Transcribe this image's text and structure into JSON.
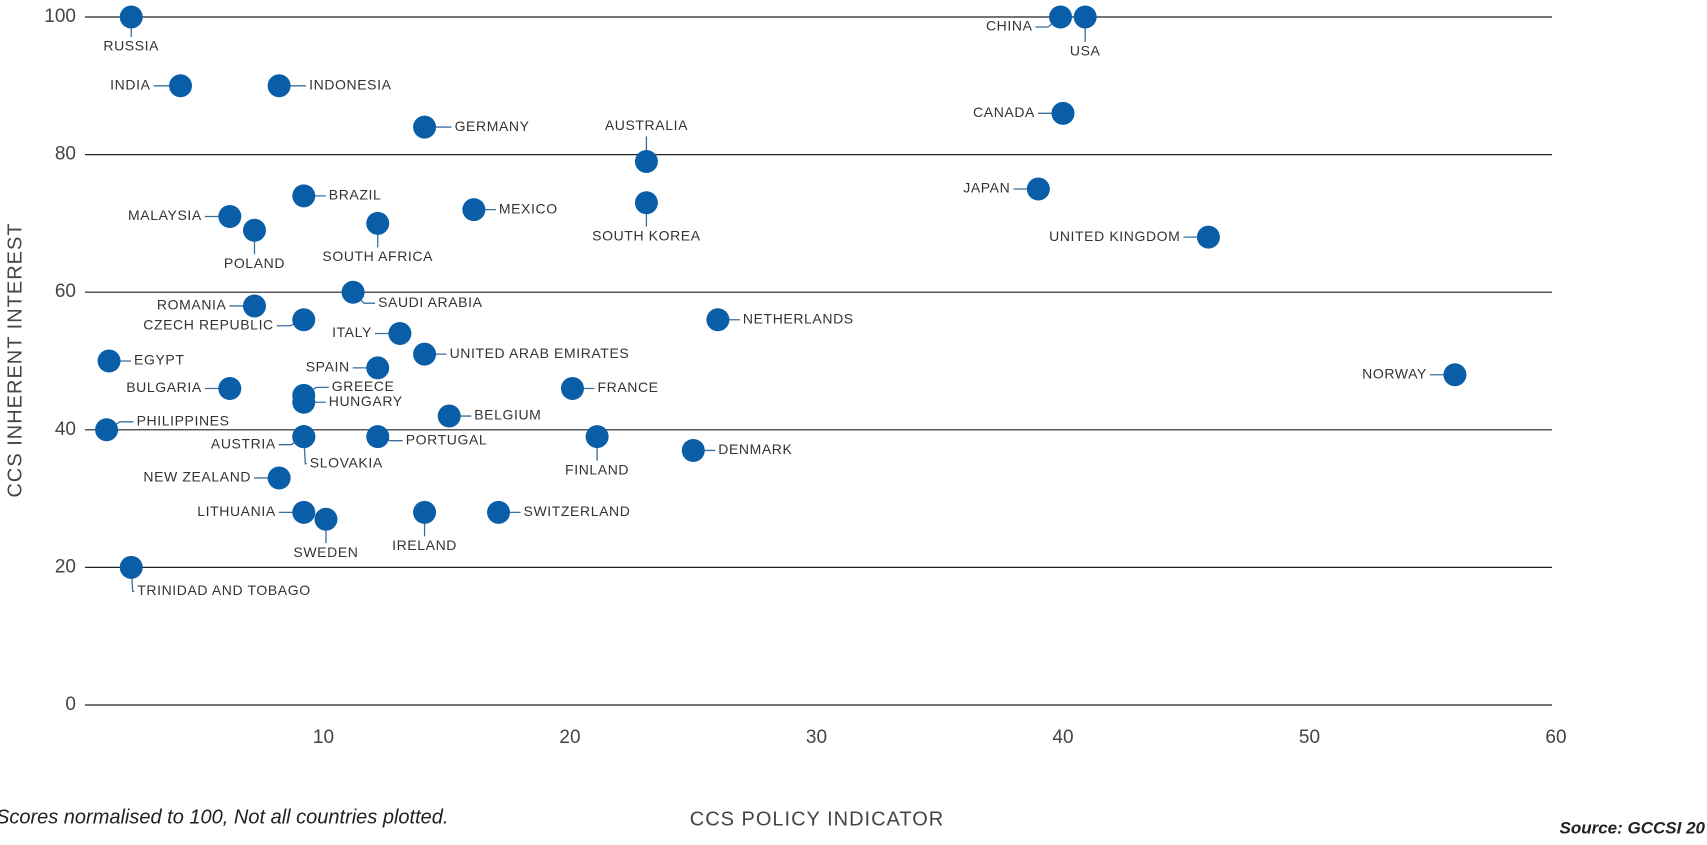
{
  "chart_data": {
    "type": "scatter",
    "xlabel": "CCS POLICY INDICATOR",
    "ylabel": "CCS INHERENT INTEREST",
    "note": "Scores normalised to 100, Not all countries plotted.",
    "source": "Source: GCCSI 20",
    "color": "#0a5ea8",
    "grid": true,
    "xlim": [
      0,
      60
    ],
    "ylim": [
      0,
      100
    ],
    "xticks": [
      10,
      20,
      30,
      40,
      50,
      60
    ],
    "yticks": [
      0,
      20,
      40,
      60,
      80,
      100
    ],
    "labels": [
      "RUSSIA",
      "INDIA",
      "INDONESIA",
      "GERMANY",
      "AUSTRALIA",
      "CHINA",
      "USA",
      "CANADA",
      "JAPAN",
      "UNITED KINGDOM",
      "BRAZIL",
      "MALAYSIA",
      "POLAND",
      "SOUTH AFRICA",
      "MEXICO",
      "SOUTH KOREA",
      "ROMANIA",
      "SAUDI ARABIA",
      "CZECH REPUBLIC",
      "NETHERLANDS",
      "ITALY",
      "UNITED ARAB EMIRATES",
      "EGYPT",
      "SPAIN",
      "BULGARIA",
      "GREECE",
      "HUNGARY",
      "FRANCE",
      "NORWAY",
      "BELGIUM",
      "PHILIPPINES",
      "AUSTRIA",
      "SLOVAKIA",
      "PORTUGAL",
      "FINLAND",
      "DENMARK",
      "NEW ZEALAND",
      "LITHUANIA",
      "SWEDEN",
      "IRELAND",
      "SWITZERLAND",
      "TRINIDAD AND TOBAGO"
    ],
    "x": [
      2.2,
      4.2,
      8.2,
      14.1,
      23.1,
      39.9,
      40.9,
      40,
      39,
      45.9,
      9.2,
      6.2,
      7.2,
      12.2,
      16.1,
      23.1,
      7.2,
      11.2,
      9.2,
      26,
      13.1,
      14.1,
      1.3,
      12.2,
      6.2,
      9.2,
      9.2,
      20.1,
      55.9,
      15.1,
      1.2,
      9.2,
      9.2,
      12.2,
      21.1,
      25,
      8.2,
      9.2,
      10.1,
      14.1,
      17.1,
      2.2
    ],
    "values": [
      100,
      90,
      90,
      84,
      79,
      100,
      100,
      86,
      75,
      68,
      74,
      71,
      69,
      70,
      72,
      73,
      58,
      60,
      56,
      56,
      54,
      51,
      50,
      49,
      46,
      45,
      44,
      46,
      48,
      42,
      40,
      39,
      39,
      39,
      39,
      37,
      33,
      28,
      27,
      28,
      28,
      20
    ]
  }
}
